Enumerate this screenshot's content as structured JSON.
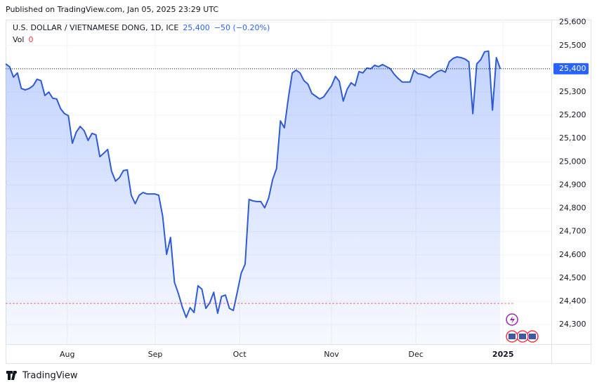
{
  "published": "Published on TradingView.com, Jan 05, 2025 23:29 UTC",
  "brand": "TradingView",
  "chart_data": {
    "type": "area",
    "title": "U.S. DOLLAR / VIETNAMESE DONG, 1D, ICE",
    "price": "25,400",
    "change": "−50 (−0.20%)",
    "volume_label": "Vol",
    "volume": 0,
    "color": "#2e5bd6",
    "values": [
      25421,
      25409,
      25364,
      25382,
      25315,
      25309,
      25315,
      25327,
      25355,
      25349,
      25285,
      25300,
      25273,
      25270,
      25228,
      25207,
      25198,
      25080,
      25128,
      25152,
      25134,
      25092,
      25122,
      25116,
      25022,
      25037,
      25053,
      24959,
      24917,
      24932,
      24962,
      24965,
      24856,
      24820,
      24856,
      24868,
      24862,
      24862,
      24862,
      24856,
      24766,
      24602,
      24675,
      24482,
      24433,
      24376,
      24331,
      24373,
      24352,
      24467,
      24452,
      24370,
      24394,
      24439,
      24349,
      24421,
      24427,
      24370,
      24361,
      24439,
      24521,
      24560,
      24838,
      24832,
      24829,
      24829,
      24802,
      24844,
      24923,
      24971,
      25176,
      25146,
      25273,
      25382,
      25394,
      25382,
      25349,
      25334,
      25294,
      25282,
      25270,
      25279,
      25303,
      25327,
      25367,
      25346,
      25261,
      25312,
      25340,
      25327,
      25388,
      25382,
      25403,
      25400,
      25415,
      25409,
      25418,
      25409,
      25400,
      25376,
      25358,
      25343,
      25343,
      25343,
      25394,
      25379,
      25376,
      25370,
      25361,
      25376,
      25388,
      25394,
      25385,
      25430,
      25445,
      25451,
      25448,
      25442,
      25430,
      25207,
      25421,
      25439,
      25473,
      25476,
      25222,
      25448,
      25400
    ],
    "last_price": {
      "value": 25400,
      "label": "25,400"
    },
    "reference_line": 24391,
    "xlim": [
      0,
      139
    ],
    "xticks": [
      {
        "value": 15.7,
        "label": "Aug"
      },
      {
        "value": 38.1,
        "label": "Sep"
      },
      {
        "value": 59.6,
        "label": "Oct"
      },
      {
        "value": 83.0,
        "label": "Nov"
      },
      {
        "value": 104.5,
        "label": "Dec"
      },
      {
        "value": 126.7,
        "label": "2025"
      }
    ],
    "ylim": [
      24216,
      25611
    ],
    "yticks": [
      {
        "value": 24300,
        "label": "24,300"
      },
      {
        "value": 24400,
        "label": "24,400"
      },
      {
        "value": 24500,
        "label": "24,500"
      },
      {
        "value": 24600,
        "label": "24,600"
      },
      {
        "value": 24700,
        "label": "24,700"
      },
      {
        "value": 24800,
        "label": "24,800"
      },
      {
        "value": 24900,
        "label": "24,900"
      },
      {
        "value": 25000,
        "label": "25,000"
      },
      {
        "value": 25100,
        "label": "25,100"
      },
      {
        "value": 25200,
        "label": "25,200"
      },
      {
        "value": 25300,
        "label": "25,300"
      },
      {
        "value": 25400,
        "label": "25,400"
      },
      {
        "value": 25500,
        "label": "25,500"
      },
      {
        "value": 25600,
        "label": "25,600"
      }
    ],
    "grid": true
  }
}
